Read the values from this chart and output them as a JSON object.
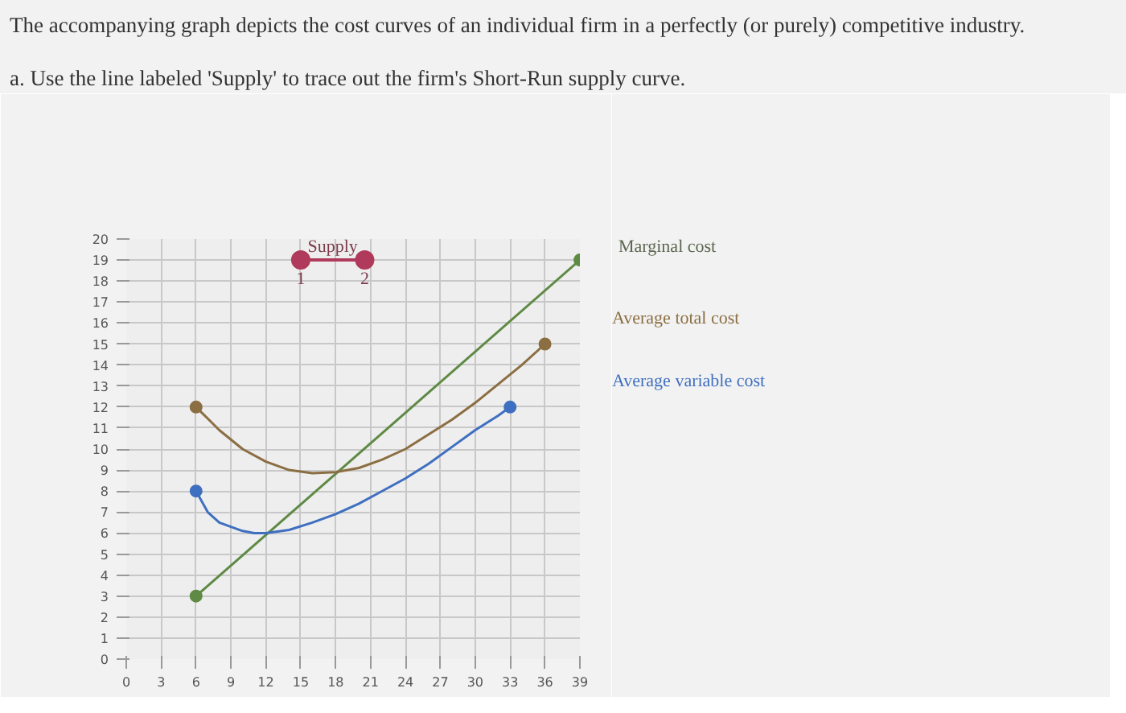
{
  "chart_data": {
    "type": "line",
    "title": "The accompanying graph depicts the cost curves of an individual firm in a perfectly (or purely) competitive industry.",
    "subtitle": "a. Use the line labeled 'Supply' to trace out the firm's Short-Run supply curve.",
    "xlim": [
      0,
      39
    ],
    "ylim": [
      0,
      20
    ],
    "xticks": [
      0,
      3,
      6,
      9,
      12,
      15,
      18,
      21,
      24,
      27,
      30,
      33,
      36,
      39
    ],
    "yticks": [
      0,
      1,
      2,
      3,
      4,
      5,
      6,
      7,
      8,
      9,
      10,
      11,
      12,
      13,
      14,
      15,
      16,
      17,
      18,
      19,
      20
    ],
    "grid": true,
    "series": [
      {
        "name": "Supply",
        "color": "#b03a5b",
        "marker": "circle",
        "x": [
          15,
          20.5
        ],
        "values": [
          19,
          19
        ]
      },
      {
        "name": "Marginal cost",
        "color": "#5f8a45",
        "marker": "circle",
        "x": [
          6,
          39
        ],
        "values": [
          3,
          19
        ]
      },
      {
        "name": "Average total cost",
        "color": "#8b6e42",
        "x": [
          6,
          8,
          10,
          12,
          14,
          16,
          18,
          20,
          22,
          24,
          26,
          28,
          30,
          32,
          34,
          36
        ],
        "values": [
          12,
          10.9,
          10,
          9.4,
          9,
          8.85,
          8.9,
          9.1,
          9.5,
          10,
          10.7,
          11.4,
          12.2,
          13.1,
          14,
          15
        ]
      },
      {
        "name": "Average variable cost",
        "color": "#3f6fc0",
        "x": [
          6,
          7,
          8,
          10,
          11,
          12,
          14,
          16,
          18,
          20,
          22,
          24,
          26,
          28,
          30,
          32,
          33
        ],
        "values": [
          8,
          7,
          6.5,
          6.1,
          6,
          6,
          6.15,
          6.5,
          6.9,
          7.4,
          8,
          8.6,
          9.3,
          10.1,
          10.9,
          11.6,
          12
        ]
      }
    ],
    "annotations": [
      {
        "text": "1",
        "x": 15,
        "y": 19
      },
      {
        "text": "2",
        "x": 20.5,
        "y": 19
      }
    ]
  }
}
